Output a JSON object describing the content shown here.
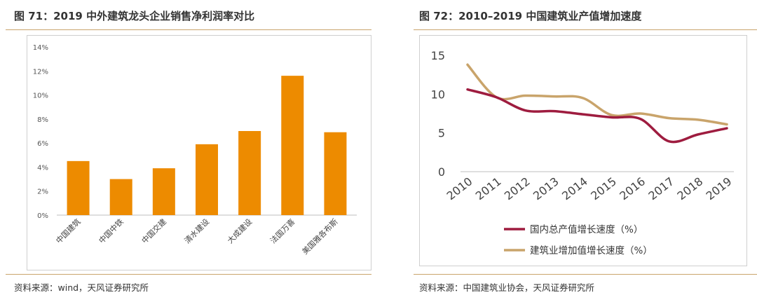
{
  "left_figure": {
    "title": "图 71：2019 中外建筑龙头企业销售净利润率对比",
    "source": "资料来源：wind，天风证券研究所"
  },
  "right_figure": {
    "title": "图 72：2010–2019 中国建筑业产值增加速度",
    "source": "资料来源：中国建筑业协会，天风证券研究所"
  },
  "chart_data": [
    {
      "type": "bar",
      "title": "",
      "xlabel": "",
      "ylabel": "",
      "categories": [
        "中国建筑",
        "中国中铁",
        "中国交建",
        "清水建设",
        "大成建设",
        "法国万喜",
        "美国雅各布斯"
      ],
      "values": [
        4.5,
        3.0,
        3.9,
        5.9,
        7.0,
        11.6,
        6.9
      ],
      "y_ticks": [
        "0%",
        "2%",
        "4%",
        "6%",
        "8%",
        "10%",
        "12%",
        "14%"
      ],
      "ylim": [
        0,
        14
      ],
      "grid": false,
      "colors": {
        "bar": "#ed8b00"
      }
    },
    {
      "type": "line",
      "title": "",
      "xlabel": "",
      "ylabel": "",
      "x": [
        "2010",
        "2011",
        "2012",
        "2013",
        "2014",
        "2015",
        "2016",
        "2017",
        "2018",
        "2019"
      ],
      "y_ticks": [
        "0",
        "5",
        "10",
        "15"
      ],
      "ylim": [
        0,
        15
      ],
      "grid": false,
      "legend_position": "bottom",
      "series": [
        {
          "name": "国内总产值增长速度（%）",
          "color": "#9e1c3f",
          "values": [
            10.6,
            9.6,
            7.9,
            7.8,
            7.4,
            7.0,
            6.8,
            3.9,
            4.8,
            5.6
          ]
        },
        {
          "name": "建筑业增加值增长速度（%）",
          "color": "#c9a46b",
          "values": [
            13.8,
            9.6,
            9.8,
            9.7,
            9.5,
            7.3,
            7.5,
            6.9,
            6.7,
            6.1
          ]
        }
      ]
    }
  ]
}
